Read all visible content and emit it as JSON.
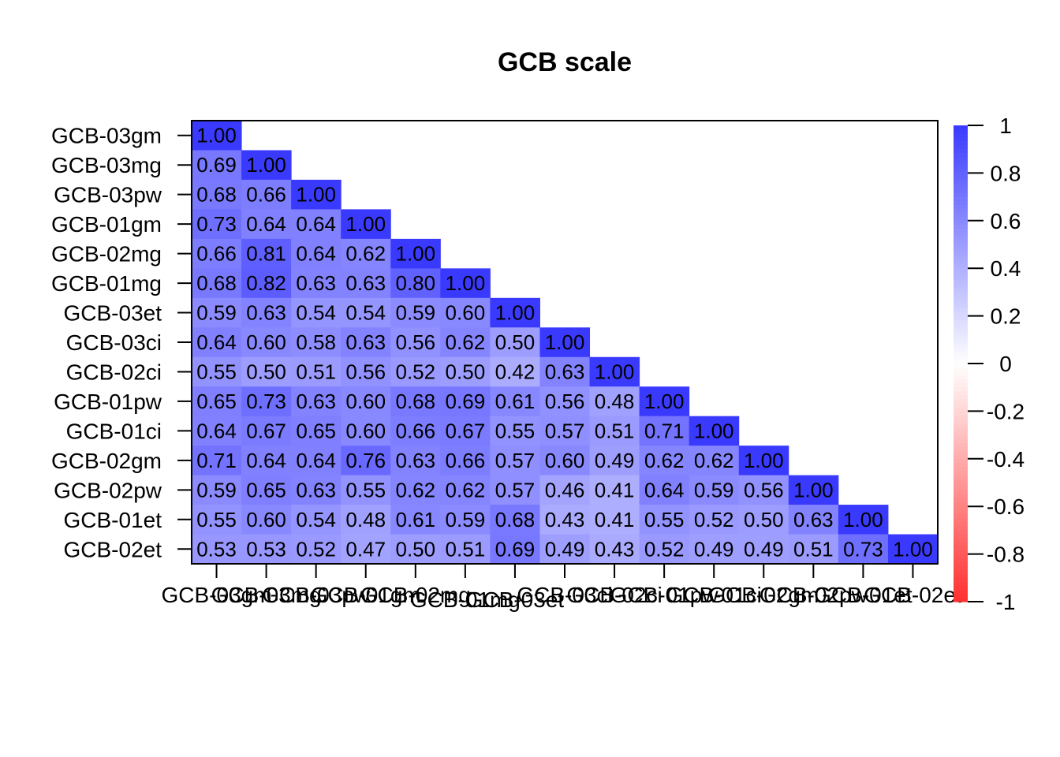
{
  "chart_data": {
    "type": "heatmap",
    "title": "GCB scale",
    "labels": [
      "GCB-03gm",
      "GCB-03mg",
      "GCB-03pw",
      "GCB-01gm",
      "GCB-02mg",
      "GCB-01mg",
      "GCB-03et",
      "GCB-03ci",
      "GCB-02ci",
      "GCB-01pw",
      "GCB-01ci",
      "GCB-02gm",
      "GCB-02pw",
      "GCB-01et",
      "GCB-02et"
    ],
    "matrix": [
      [
        1.0
      ],
      [
        0.69,
        1.0
      ],
      [
        0.68,
        0.66,
        1.0
      ],
      [
        0.73,
        0.64,
        0.64,
        1.0
      ],
      [
        0.66,
        0.81,
        0.64,
        0.62,
        1.0
      ],
      [
        0.68,
        0.82,
        0.63,
        0.63,
        0.8,
        1.0
      ],
      [
        0.59,
        0.63,
        0.54,
        0.54,
        0.59,
        0.6,
        1.0
      ],
      [
        0.64,
        0.6,
        0.58,
        0.63,
        0.56,
        0.62,
        0.5,
        1.0
      ],
      [
        0.55,
        0.5,
        0.51,
        0.56,
        0.52,
        0.5,
        0.42,
        0.63,
        1.0
      ],
      [
        0.65,
        0.73,
        0.63,
        0.6,
        0.68,
        0.69,
        0.61,
        0.56,
        0.48,
        1.0
      ],
      [
        0.64,
        0.67,
        0.65,
        0.6,
        0.66,
        0.67,
        0.55,
        0.57,
        0.51,
        0.71,
        1.0
      ],
      [
        0.71,
        0.64,
        0.64,
        0.76,
        0.63,
        0.66,
        0.57,
        0.6,
        0.49,
        0.62,
        0.62,
        1.0
      ],
      [
        0.59,
        0.65,
        0.63,
        0.55,
        0.62,
        0.62,
        0.57,
        0.46,
        0.41,
        0.64,
        0.59,
        0.56,
        1.0
      ],
      [
        0.55,
        0.6,
        0.54,
        0.48,
        0.61,
        0.59,
        0.68,
        0.43,
        0.41,
        0.55,
        0.52,
        0.5,
        0.63,
        1.0
      ],
      [
        0.53,
        0.53,
        0.52,
        0.47,
        0.5,
        0.51,
        0.69,
        0.49,
        0.43,
        0.52,
        0.49,
        0.49,
        0.51,
        0.73,
        1.0
      ]
    ],
    "color_scale": {
      "range": [
        -1,
        1
      ],
      "ticks": [
        "1",
        "0.8",
        "0.6",
        "0.4",
        "0.2",
        "0",
        "-0.2",
        "-0.4",
        "-0.6",
        "-0.8",
        "-1"
      ],
      "low_color": "#FF3030",
      "mid_color": "#FFFFFF",
      "high_color": "#3A3AFF"
    },
    "legend_position": "right"
  }
}
